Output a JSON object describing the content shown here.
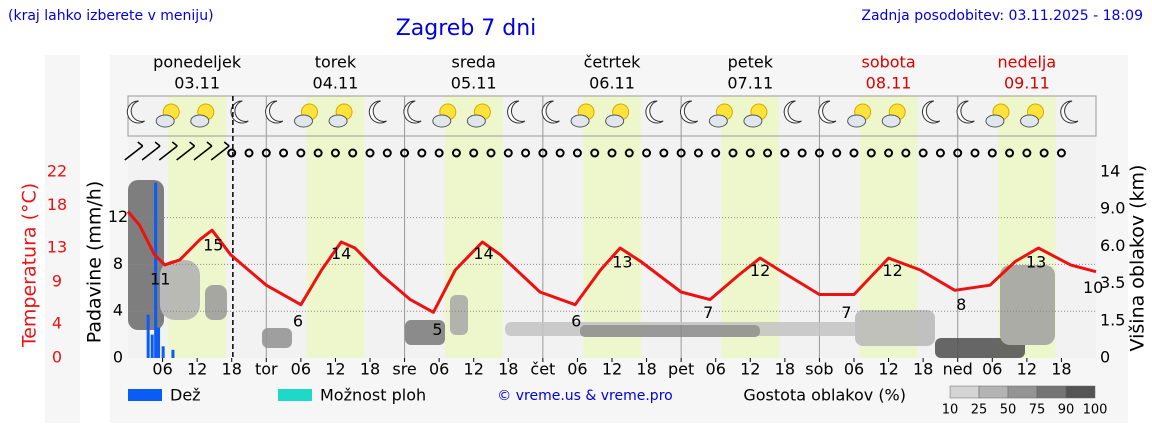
{
  "header": {
    "hint": "(kraj lahko izberete v meniju)",
    "title": "Zagreb 7 dni",
    "updated": "Zadnja posodobitev: 03.11.2025 - 18:09"
  },
  "chart_data": {
    "type": "line",
    "days": [
      {
        "name": "ponedeljek",
        "date": "03.11",
        "color": "#000000"
      },
      {
        "name": "torek",
        "date": "04.11",
        "color": "#000000"
      },
      {
        "name": "sreda",
        "date": "05.11",
        "color": "#000000"
      },
      {
        "name": "četrtek",
        "date": "06.11",
        "color": "#000000"
      },
      {
        "name": "petek",
        "date": "07.11",
        "color": "#000000"
      },
      {
        "name": "sobota",
        "date": "08.11",
        "color": "#dd0000"
      },
      {
        "name": "nedelja",
        "date": "09.11",
        "color": "#dd0000"
      }
    ],
    "xlim": [
      0,
      168
    ],
    "xticks": [
      {
        "value": 6,
        "label": "06"
      },
      {
        "value": 12,
        "label": "12"
      },
      {
        "value": 18,
        "label": "18"
      },
      {
        "value": 24,
        "label": "tor"
      },
      {
        "value": 30,
        "label": "06"
      },
      {
        "value": 36,
        "label": "12"
      },
      {
        "value": 42,
        "label": "18"
      },
      {
        "value": 48,
        "label": "sre"
      },
      {
        "value": 54,
        "label": "06"
      },
      {
        "value": 60,
        "label": "12"
      },
      {
        "value": 66,
        "label": "18"
      },
      {
        "value": 72,
        "label": "čet"
      },
      {
        "value": 78,
        "label": "06"
      },
      {
        "value": 84,
        "label": "12"
      },
      {
        "value": 90,
        "label": "18"
      },
      {
        "value": 96,
        "label": "pet"
      },
      {
        "value": 102,
        "label": "06"
      },
      {
        "value": 108,
        "label": "12"
      },
      {
        "value": 114,
        "label": "18"
      },
      {
        "value": 120,
        "label": "sob"
      },
      {
        "value": 126,
        "label": "06"
      },
      {
        "value": 132,
        "label": "12"
      },
      {
        "value": 138,
        "label": "18"
      },
      {
        "value": 144,
        "label": "ned"
      },
      {
        "value": 150,
        "label": "06"
      },
      {
        "value": 156,
        "label": "12"
      },
      {
        "value": 162,
        "label": "18"
      }
    ],
    "now": 18.2,
    "ylabel": "Temperatura (°C)",
    "ylim": [
      0,
      22.8
    ],
    "yticks": [
      0,
      4,
      9,
      13,
      18,
      22
    ],
    "precip_label": "Padavine (mm/h)",
    "precip_lim": [
      0,
      16.5
    ],
    "precip_ticks": [
      0,
      4,
      8,
      12
    ],
    "y2label": "Višina oblakov (km)",
    "y2ticks": [
      0,
      1.5,
      3.5,
      {
        "value": 6,
        "label": "6.0"
      },
      {
        "value": 9,
        "label": "9.0"
      },
      14
    ],
    "grid": true,
    "series": [
      {
        "name": "Temperatura",
        "color": "#ee1111",
        "x": [
          0,
          2,
          4.6,
          6.4,
          9,
          12.5,
          14.6,
          17.8,
          24,
          30,
          33.6,
          37,
          39.4,
          44,
          49,
          53,
          56.8,
          61.5,
          64.6,
          71.5,
          77.6,
          82,
          85.4,
          89,
          96,
          101,
          106,
          109.7,
          113,
          120,
          126,
          132,
          137.5,
          143.5,
          149.6,
          154,
          158,
          163.6,
          168
        ],
        "values": [
          17.3,
          15.7,
          12.2,
          11,
          11.6,
          14,
          15.1,
          12.2,
          8.6,
          6.3,
          10.4,
          13.7,
          13,
          9.8,
          6.9,
          5.4,
          10.4,
          13.7,
          12.2,
          7.8,
          6.3,
          10.4,
          13,
          11.4,
          7.8,
          6.9,
          9.8,
          11.8,
          10.4,
          7.5,
          7.5,
          11.8,
          10.4,
          8,
          8.6,
          11.4,
          13,
          11,
          10.2
        ]
      }
    ],
    "annotations": {
      "x": [
        5.6,
        14.8,
        29.5,
        37,
        53.7,
        61.7,
        77.8,
        85.8,
        100.7,
        109.7,
        124.7,
        132.7,
        144.6,
        157.6,
        167.5
      ],
      "values": [
        11,
        15,
        6,
        14,
        5,
        14,
        6,
        13,
        7,
        12,
        7,
        12,
        8,
        13,
        10
      ]
    },
    "precip": [
      {
        "name": "Dež",
        "color": "#0a5cf5",
        "x": [
          3.5,
          4.2,
          4.8,
          5.3,
          6.1,
          7.8
        ],
        "values": [
          3.7,
          2.0,
          15.0,
          2.6,
          1.0,
          0.7
        ]
      },
      {
        "name": "Možnost ploh",
        "color": "#1ed8c8",
        "x": [],
        "values": []
      }
    ],
    "credit": "© vreme.us & vreme.pro",
    "cloud_legend": {
      "title": "Gostota oblakov (%)",
      "levels": [
        10,
        25,
        50,
        75,
        90,
        100
      ],
      "colors": [
        "#d4d4d4",
        "#b4b4b4",
        "#949494",
        "#747474",
        "#545454"
      ]
    }
  }
}
